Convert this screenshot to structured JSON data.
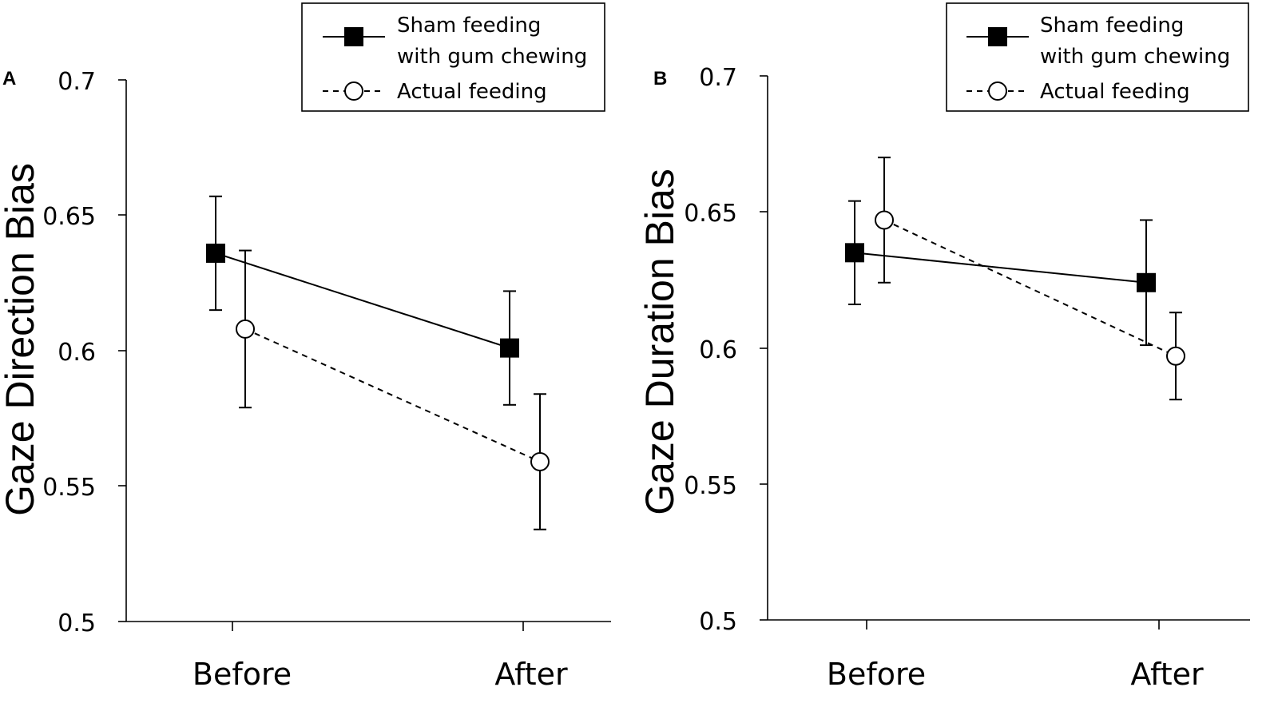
{
  "chart_data": [
    {
      "type": "line",
      "panel": "A",
      "title": "",
      "ylabel": "Gaze Direction Bias",
      "xlabel": "",
      "categories": [
        "Before",
        "After"
      ],
      "ylim": [
        0.5,
        0.7
      ],
      "yticks": [
        "0.5",
        "0.55",
        "0.6",
        "0.65",
        "0.7"
      ],
      "grid": false,
      "legend_position": "top-right",
      "series": [
        {
          "name": "Sham feeding with gum chewing",
          "legend_lines": [
            "Sham feeding",
            "with gum chewing"
          ],
          "marker": "filled-square",
          "line": "solid",
          "values": [
            0.636,
            0.601
          ],
          "error_low": [
            0.615,
            0.58
          ],
          "error_high": [
            0.657,
            0.622
          ]
        },
        {
          "name": "Actual feeding",
          "legend_lines": [
            "Actual feeding"
          ],
          "marker": "open-circle",
          "line": "dashed",
          "values": [
            0.608,
            0.559
          ],
          "error_low": [
            0.579,
            0.534
          ],
          "error_high": [
            0.637,
            0.584
          ]
        }
      ]
    },
    {
      "type": "line",
      "panel": "B",
      "title": "",
      "ylabel": "Gaze Duration Bias",
      "xlabel": "",
      "categories": [
        "Before",
        "After"
      ],
      "ylim": [
        0.5,
        0.7
      ],
      "yticks": [
        "0.5",
        "0.55",
        "0.6",
        "0.65",
        "0.7"
      ],
      "grid": false,
      "legend_position": "top-right",
      "series": [
        {
          "name": "Sham feeding with gum chewing",
          "legend_lines": [
            "Sham feeding",
            "with gum chewing"
          ],
          "marker": "filled-square",
          "line": "solid",
          "values": [
            0.635,
            0.624
          ],
          "error_low": [
            0.616,
            0.601
          ],
          "error_high": [
            0.654,
            0.647
          ]
        },
        {
          "name": "Actual feeding",
          "legend_lines": [
            "Actual feeding"
          ],
          "marker": "open-circle",
          "line": "dashed",
          "values": [
            0.647,
            0.597
          ],
          "error_low": [
            0.624,
            0.581
          ],
          "error_high": [
            0.67,
            0.613
          ]
        }
      ]
    }
  ]
}
